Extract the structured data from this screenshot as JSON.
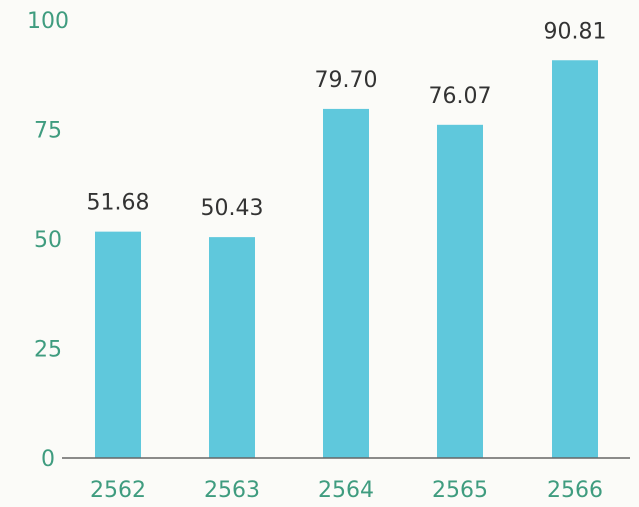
{
  "chart_data": {
    "type": "bar",
    "title": "",
    "xlabel": "",
    "ylabel": "",
    "categories": [
      "2562",
      "2563",
      "2564",
      "2565",
      "2566"
    ],
    "values": [
      51.68,
      50.43,
      79.7,
      76.07,
      90.81
    ],
    "value_labels": [
      "51.68",
      "50.43",
      "79.70",
      "76.07",
      "90.81"
    ],
    "ylim": [
      0,
      100
    ],
    "yticks": [
      0,
      25,
      50,
      75,
      100
    ],
    "ytick_labels": [
      "0",
      "25",
      "50",
      "75",
      "100"
    ],
    "grid": false,
    "legend": "none",
    "colors": {
      "bar": "#5fc8dc",
      "tick_label": "#3f9c7f",
      "value_label": "#333333",
      "axis": "#666666"
    }
  }
}
